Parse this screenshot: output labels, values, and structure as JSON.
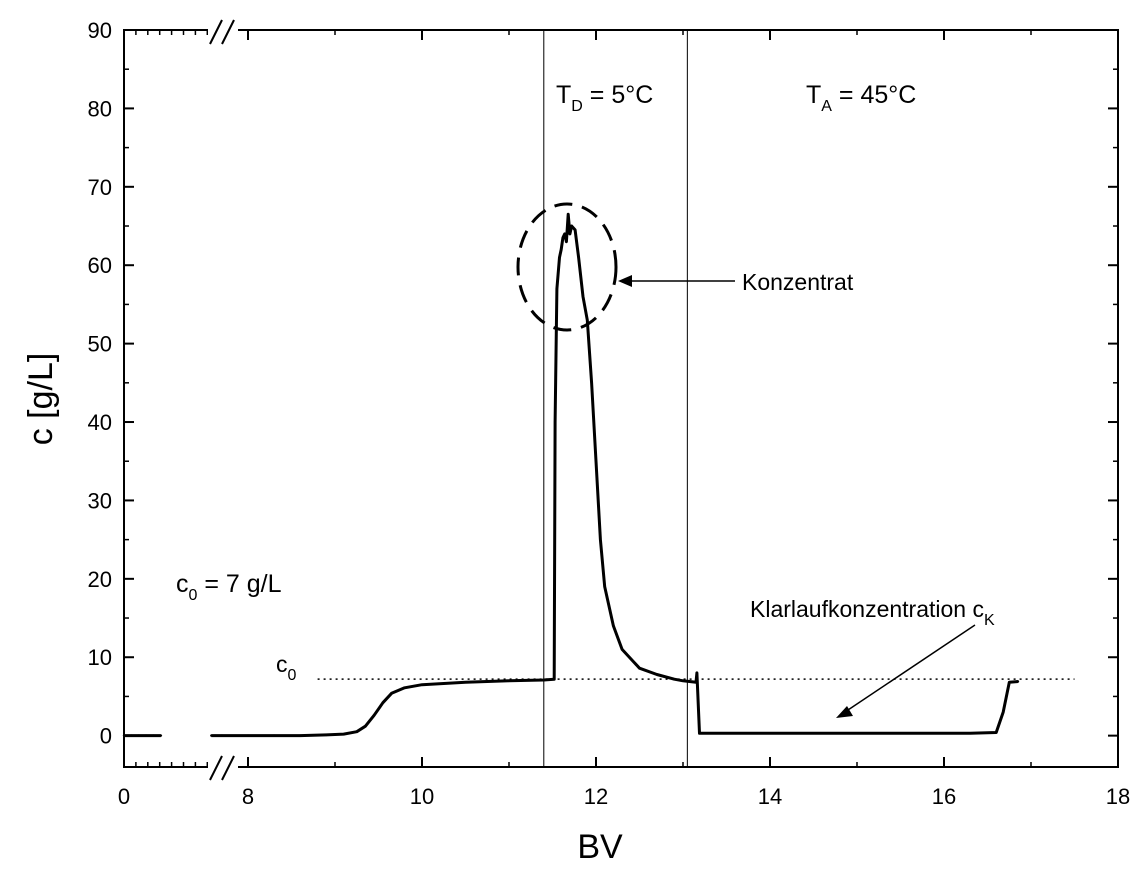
{
  "chart_data": {
    "type": "line",
    "title": "",
    "xlabel": "BV",
    "ylabel": "c [g/L]",
    "xlim": [
      0,
      18
    ],
    "ylim": [
      -4,
      90
    ],
    "x_axis_break": {
      "after_tick": "0",
      "before_tick": "8"
    },
    "x_ticks": [
      {
        "value": 0,
        "label": "0"
      },
      {
        "value": 8,
        "label": "8"
      },
      {
        "value": 10,
        "label": "10"
      },
      {
        "value": 12,
        "label": "12"
      },
      {
        "value": 14,
        "label": "14"
      },
      {
        "value": 16,
        "label": "16"
      },
      {
        "value": 18,
        "label": "18"
      }
    ],
    "y_ticks": [
      0,
      10,
      20,
      30,
      40,
      50,
      60,
      70,
      80,
      90
    ],
    "grid": false,
    "series": [
      {
        "line_color": "#000000",
        "points": [
          [
            0.0,
            0.0
          ],
          [
            0.6,
            0.0
          ],
          [
            1.2,
            0.0
          ],
          [
            1.8,
            0.0
          ],
          [
            2.4,
            0.0
          ],
          [
            3.0,
            0.0
          ],
          [
            7.1,
            0.0
          ],
          [
            7.4,
            0.0
          ],
          [
            7.7,
            0.0
          ],
          [
            8.0,
            0.0
          ],
          [
            8.3,
            0.0
          ],
          [
            8.6,
            0.0
          ],
          [
            8.9,
            0.1
          ],
          [
            9.1,
            0.2
          ],
          [
            9.25,
            0.5
          ],
          [
            9.35,
            1.2
          ],
          [
            9.45,
            2.6
          ],
          [
            9.55,
            4.2
          ],
          [
            9.65,
            5.4
          ],
          [
            9.8,
            6.1
          ],
          [
            10.0,
            6.5
          ],
          [
            10.5,
            6.8
          ],
          [
            11.0,
            7.0
          ],
          [
            11.4,
            7.1
          ],
          [
            11.52,
            7.2
          ],
          [
            11.53,
            40.0
          ],
          [
            11.55,
            57.0
          ],
          [
            11.58,
            61.0
          ],
          [
            11.6,
            62.0
          ],
          [
            11.62,
            63.5
          ],
          [
            11.64,
            64.0
          ],
          [
            11.66,
            63.0
          ],
          [
            11.68,
            66.5
          ],
          [
            11.7,
            64.0
          ],
          [
            11.72,
            65.0
          ],
          [
            11.76,
            64.5
          ],
          [
            11.8,
            61.0
          ],
          [
            11.85,
            56.0
          ],
          [
            11.9,
            53.0
          ],
          [
            11.95,
            45.0
          ],
          [
            12.0,
            35.0
          ],
          [
            12.05,
            25.0
          ],
          [
            12.1,
            19.0
          ],
          [
            12.2,
            14.0
          ],
          [
            12.3,
            11.0
          ],
          [
            12.5,
            8.6
          ],
          [
            12.7,
            7.8
          ],
          [
            12.9,
            7.2
          ],
          [
            13.0,
            7.0
          ],
          [
            13.15,
            6.8
          ],
          [
            13.16,
            8.0
          ],
          [
            13.19,
            0.3
          ],
          [
            13.4,
            0.3
          ],
          [
            13.8,
            0.3
          ],
          [
            14.5,
            0.3
          ],
          [
            15.5,
            0.3
          ],
          [
            16.3,
            0.3
          ],
          [
            16.6,
            0.4
          ],
          [
            16.68,
            3.0
          ],
          [
            16.75,
            6.8
          ],
          [
            16.85,
            6.9
          ]
        ]
      }
    ],
    "reference_line": {
      "label": "c",
      "label_sub": "0",
      "value": 7.2,
      "x_start": 8.8,
      "x_end": 17.5,
      "style": "dotted"
    },
    "vertical_lines": [
      11.4,
      13.05
    ],
    "annotations": {
      "td": {
        "main": "T",
        "sub": "D",
        "rest": " = 5°C"
      },
      "ta": {
        "main": "T",
        "sub": "A",
        "rest": " = 45°C"
      },
      "c0_text": {
        "main": "c",
        "sub": "0",
        "rest": " = 7 g/L"
      },
      "konzentrat": "Konzentrat",
      "klarlauf": {
        "main": "Klarlaufkonzentration c",
        "sub": "K"
      }
    }
  }
}
